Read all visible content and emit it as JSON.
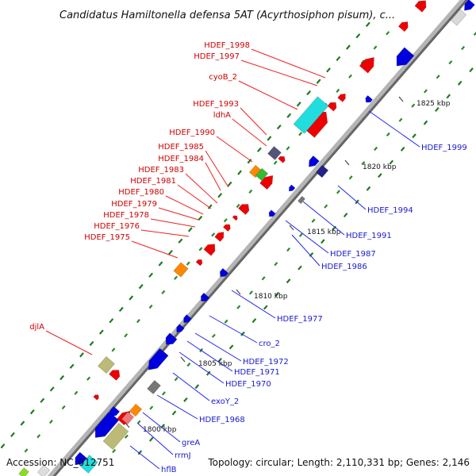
{
  "title": "Candidatus Hamiltonella defensa 5AT (Acyrthosiphon pisum), c...",
  "footer": {
    "accession": "Accession: NC_012751",
    "summary": "Topology: circular; Length: 2,110,331 bp; Genes: 2,146"
  },
  "colors": {
    "forward_gene": "#ee0000",
    "reverse_gene": "#0000dd",
    "forward_label": "#cc0000",
    "reverse_label": "#1a1acc",
    "rrna": "#ff8800",
    "trna": "#33bb33",
    "cds_other": "#22dddd",
    "pseudo": "#bbbb77",
    "unknown": "#777777",
    "gc_dots": "#2a8a2a",
    "backbone": "#9a9a9a"
  },
  "ticks": [
    "1800 kbp",
    "1805 kbp",
    "1810 kbp",
    "1815 kbp",
    "1820 kbp",
    "1825 kbp"
  ],
  "labels_forward": [
    "HDEF_1998",
    "HDEF_1997",
    "cyoB_2",
    "HDEF_1993",
    "ldhA",
    "HDEF_1990",
    "HDEF_1985",
    "HDEF_1984",
    "HDEF_1983",
    "HDEF_1981",
    "HDEF_1980",
    "HDEF_1979",
    "HDEF_1978",
    "HDEF_1976",
    "HDEF_1975",
    "djlA"
  ],
  "labels_reverse": [
    "HDEF_1999",
    "HDEF_1994",
    "HDEF_1991",
    "HDEF_1987",
    "HDEF_1986",
    "HDEF_1977",
    "cro_2",
    "HDEF_1972",
    "HDEF_1971",
    "HDEF_1970",
    "exoY_2",
    "HDEF_1968",
    "greA",
    "rrmJ",
    "hflB"
  ]
}
